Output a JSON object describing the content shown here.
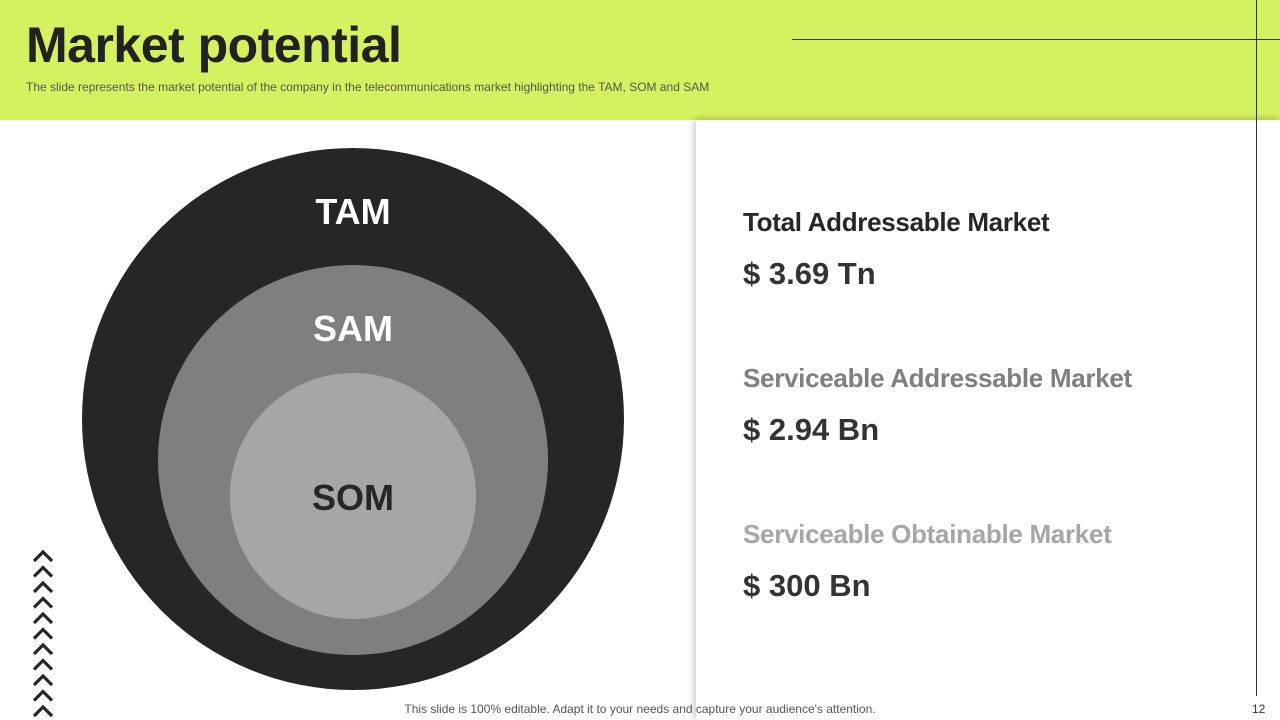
{
  "header": {
    "title": "Market potential",
    "subtitle": "The slide represents the market potential of the company in the telecommunications market highlighting the TAM, SOM and SAM"
  },
  "diagram": {
    "circles": [
      {
        "label": "TAM",
        "color": "#262626",
        "label_color": "#ffffff"
      },
      {
        "label": "SAM",
        "color": "#7f7f7f",
        "label_color": "#ffffff"
      },
      {
        "label": "SOM",
        "color": "#a6a6a6",
        "label_color": "#262626"
      }
    ]
  },
  "markets": [
    {
      "name": "Total Addressable Market",
      "value": "$ 3.69 Tn",
      "color": "#262626"
    },
    {
      "name": "Serviceable Addressable Market",
      "value": "$ 2.94 Bn",
      "color": "#7f7f7f"
    },
    {
      "name": "Serviceable Obtainable Market",
      "value": "$ 300 Bn",
      "color": "#a6a6a6"
    }
  ],
  "footer": {
    "note": "This slide is 100% editable. Adapt it to your needs and capture your audience's attention.",
    "page_number": "12"
  },
  "colors": {
    "accent": "#d4f15f",
    "dark": "#262626"
  }
}
